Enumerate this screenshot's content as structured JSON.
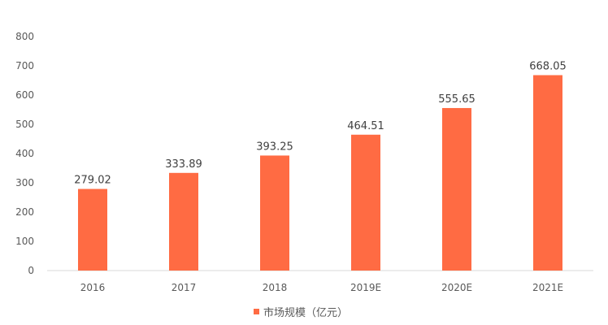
{
  "chart_data": {
    "type": "bar",
    "categories": [
      "2016",
      "2017",
      "2018",
      "2019E",
      "2020E",
      "2021E"
    ],
    "series": [
      {
        "name": "市场规模（亿元）",
        "values": [
          279.02,
          333.89,
          393.25,
          464.51,
          555.65,
          668.05
        ],
        "color": "#FF6B43"
      }
    ],
    "data_labels": [
      "279.02",
      "333.89",
      "393.25",
      "464.51",
      "555.65",
      "668.05"
    ],
    "yticks": [
      "0",
      "100",
      "200",
      "300",
      "400",
      "500",
      "600",
      "700",
      "800"
    ],
    "ylim": [
      0,
      800
    ],
    "grid": false,
    "legend_position": "bottom"
  }
}
